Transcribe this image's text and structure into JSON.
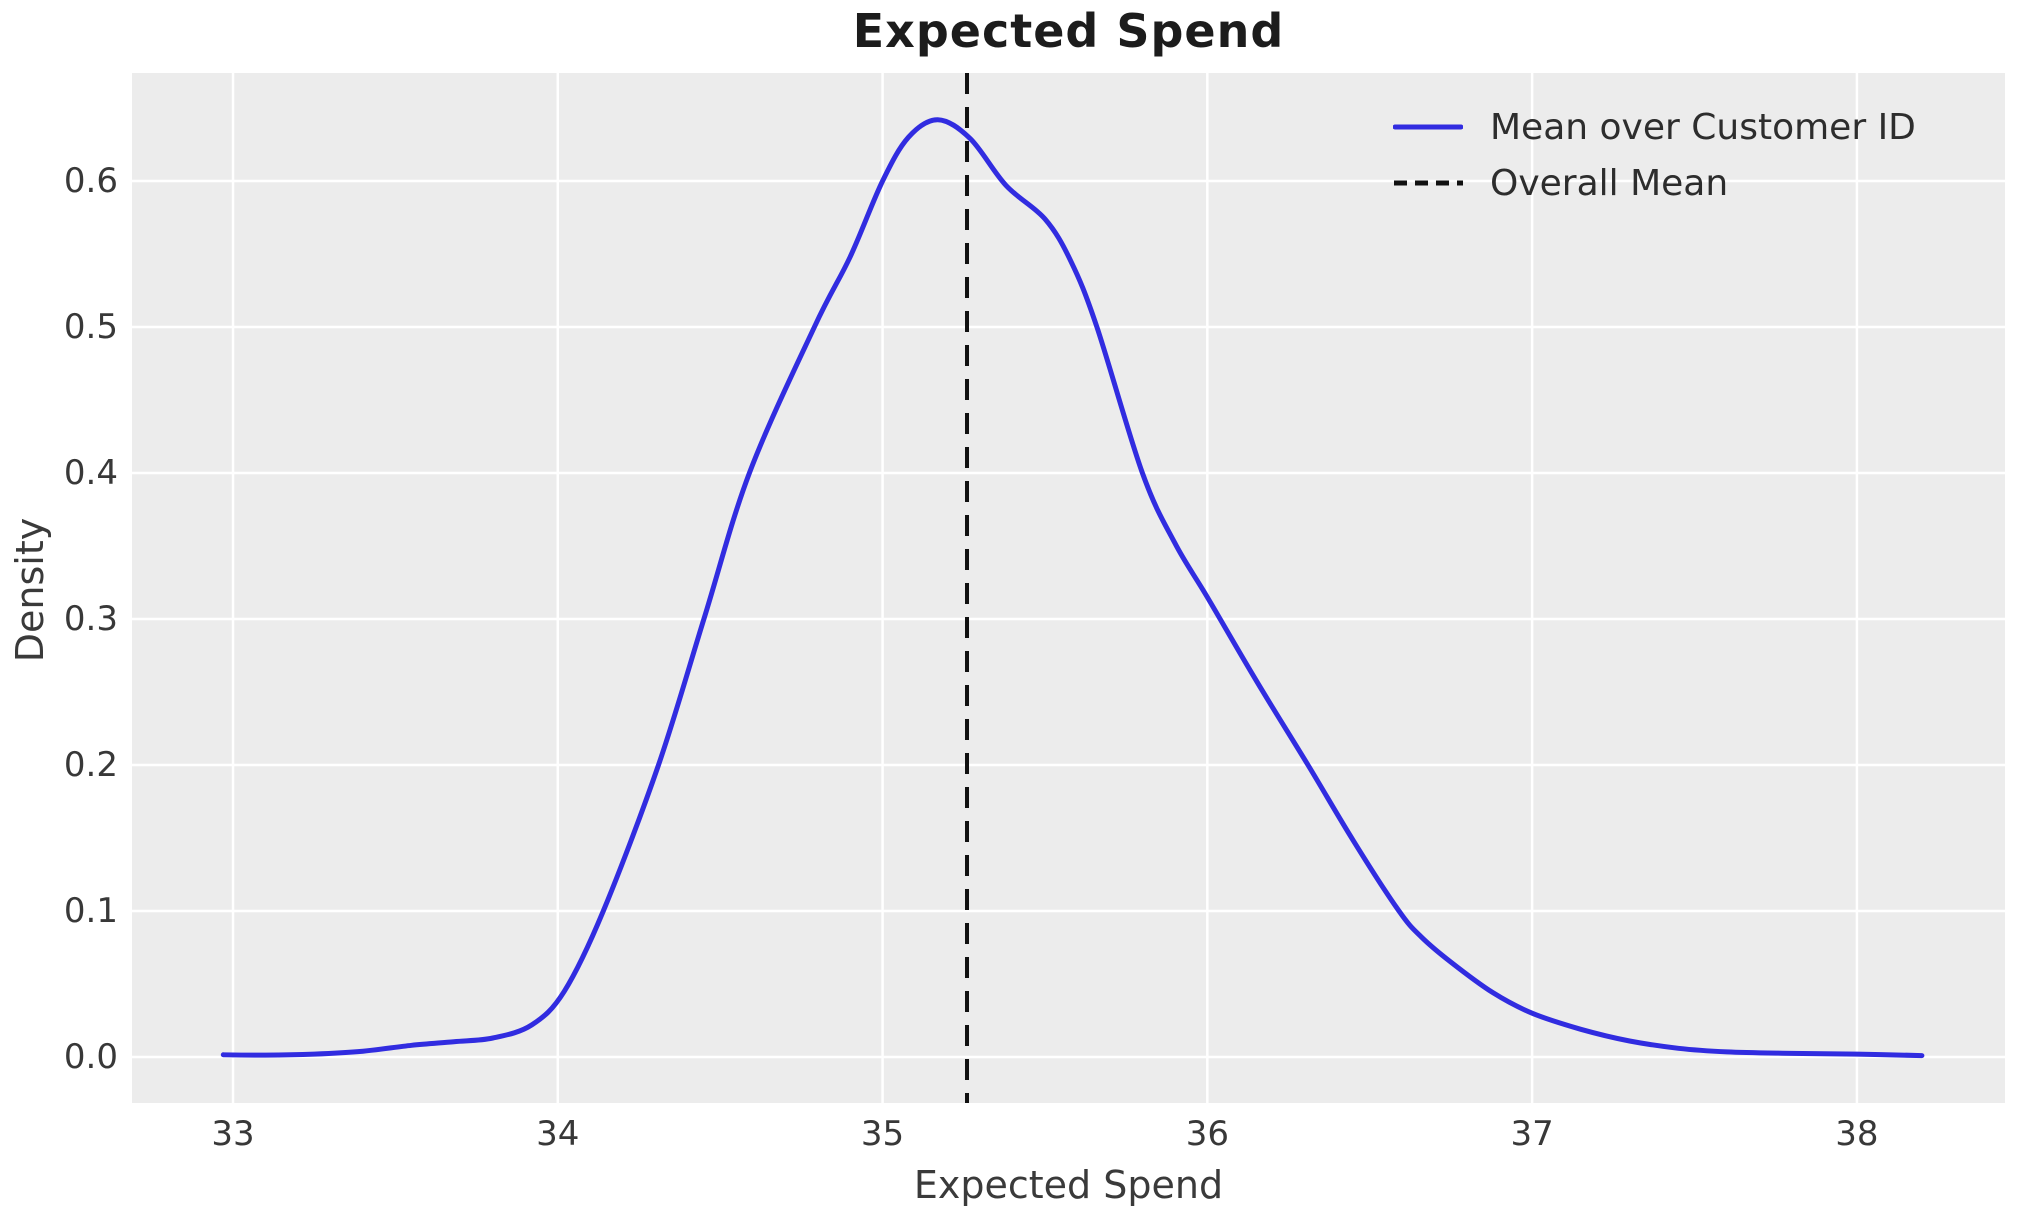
{
  "chart_data": {
    "type": "line",
    "title": "Expected Spend",
    "xlabel": "Expected Spend",
    "ylabel": "Density",
    "x_tick_labels": [
      "33",
      "34",
      "35",
      "36",
      "37",
      "38"
    ],
    "y_tick_labels": [
      "0.0",
      "0.1",
      "0.2",
      "0.3",
      "0.4",
      "0.5",
      "0.6"
    ],
    "xlim": [
      32.689,
      38.456
    ],
    "ylim": [
      -0.0315,
      0.674
    ],
    "grid": true,
    "panel_background": "#ececec",
    "gridline_color": "#ffffff",
    "legend": {
      "position": "upper right",
      "entries": [
        {
          "label": "Mean over Customer ID",
          "line_style": "solid",
          "color": "#312ce0"
        },
        {
          "label": "Overall Mean",
          "line_style": "dashed",
          "color": "#111111"
        }
      ]
    },
    "series": [
      {
        "name": "Mean over Customer ID",
        "type": "kde_line",
        "color": "#312ce0",
        "points": [
          [
            32.97,
            0.0015
          ],
          [
            33.1,
            0.0013
          ],
          [
            33.25,
            0.002
          ],
          [
            33.4,
            0.004
          ],
          [
            33.55,
            0.008
          ],
          [
            33.68,
            0.0105
          ],
          [
            33.8,
            0.013
          ],
          [
            33.92,
            0.022
          ],
          [
            34.02,
            0.045
          ],
          [
            34.14,
            0.1
          ],
          [
            34.31,
            0.2
          ],
          [
            34.45,
            0.3
          ],
          [
            34.59,
            0.4
          ],
          [
            34.79,
            0.5
          ],
          [
            34.9,
            0.548
          ],
          [
            35.0,
            0.6
          ],
          [
            35.08,
            0.63
          ],
          [
            35.17,
            0.642
          ],
          [
            35.27,
            0.629
          ],
          [
            35.38,
            0.597
          ],
          [
            35.5,
            0.574
          ],
          [
            35.58,
            0.545
          ],
          [
            35.66,
            0.5
          ],
          [
            35.8,
            0.4
          ],
          [
            35.9,
            0.352
          ],
          [
            36.0,
            0.315
          ],
          [
            36.15,
            0.258
          ],
          [
            36.31,
            0.2
          ],
          [
            36.45,
            0.148
          ],
          [
            36.59,
            0.1
          ],
          [
            36.66,
            0.082
          ],
          [
            36.75,
            0.065
          ],
          [
            36.88,
            0.044
          ],
          [
            37.0,
            0.03
          ],
          [
            37.15,
            0.019
          ],
          [
            37.3,
            0.011
          ],
          [
            37.45,
            0.006
          ],
          [
            37.6,
            0.0035
          ],
          [
            37.8,
            0.0025
          ],
          [
            38.0,
            0.002
          ],
          [
            38.2,
            0.001
          ]
        ]
      },
      {
        "name": "Overall Mean",
        "type": "vline",
        "color": "#111111",
        "x": 35.26
      }
    ]
  }
}
